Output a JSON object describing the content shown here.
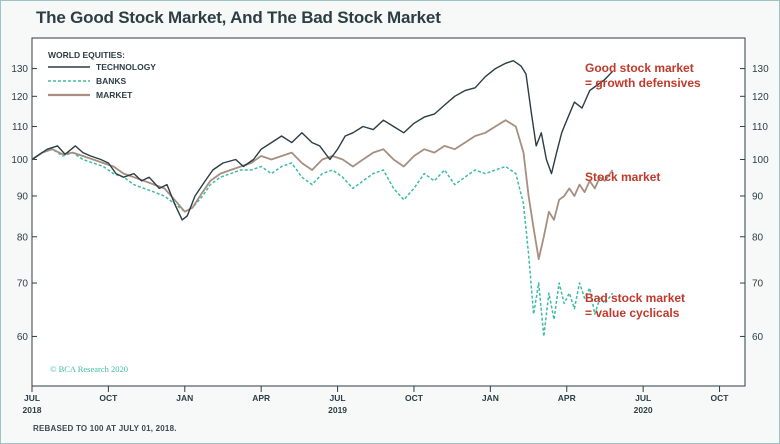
{
  "chart_data": {
    "type": "line",
    "title": "The Good Stock Market, And The Bad Stock Market",
    "legend_title": "WORLD EQUITIES:",
    "y_scale": "log",
    "ylim": [
      52,
      142
    ],
    "y_ticks": [
      60,
      70,
      80,
      90,
      100,
      110,
      120,
      130
    ],
    "x_range_months": [
      0,
      28
    ],
    "x_ticks": [
      {
        "m": 0,
        "label": "JUL",
        "year": "2018"
      },
      {
        "m": 3,
        "label": "OCT",
        "year": ""
      },
      {
        "m": 6,
        "label": "JAN",
        "year": ""
      },
      {
        "m": 9,
        "label": "APR",
        "year": ""
      },
      {
        "m": 12,
        "label": "JUL",
        "year": "2019"
      },
      {
        "m": 15,
        "label": "OCT",
        "year": ""
      },
      {
        "m": 18,
        "label": "JAN",
        "year": ""
      },
      {
        "m": 21,
        "label": "APR",
        "year": ""
      },
      {
        "m": 24,
        "label": "JUL",
        "year": "2020"
      },
      {
        "m": 27,
        "label": "OCT",
        "year": ""
      }
    ],
    "series": [
      {
        "name": "TECHNOLOGY",
        "color": "#2b3d44",
        "style": "solid",
        "x": [
          0,
          0.3,
          0.6,
          1,
          1.3,
          1.7,
          2,
          2.3,
          2.7,
          3,
          3.3,
          3.6,
          4,
          4.3,
          4.6,
          5,
          5.3,
          5.6,
          5.9,
          6.1,
          6.4,
          6.8,
          7.1,
          7.5,
          8,
          8.3,
          8.7,
          9,
          9.4,
          9.8,
          10.2,
          10.6,
          11,
          11.3,
          11.7,
          12,
          12.3,
          12.6,
          13,
          13.4,
          13.8,
          14.2,
          14.6,
          15,
          15.4,
          15.8,
          16.2,
          16.6,
          17,
          17.4,
          17.8,
          18.2,
          18.6,
          18.9,
          19.2,
          19.4,
          19.6,
          19.8,
          20,
          20.2,
          20.4,
          20.6,
          20.8,
          21,
          21.3,
          21.6,
          21.9,
          22.2,
          22.5,
          22.8
        ],
        "values": [
          100,
          101.5,
          103,
          104,
          101.5,
          104,
          102,
          101,
          100,
          99,
          96,
          95,
          96,
          94,
          95,
          92,
          93,
          88,
          84,
          85,
          90,
          94,
          97,
          99,
          100,
          98,
          100,
          103,
          105,
          107,
          105,
          108,
          105,
          104,
          100,
          103,
          107,
          108,
          110,
          109,
          112,
          110,
          108,
          111,
          113,
          114,
          117,
          120,
          122,
          123,
          127,
          130,
          132,
          133,
          131,
          128,
          115,
          104,
          108,
          100,
          96,
          102,
          108,
          112,
          118,
          116,
          122,
          124,
          126,
          129
        ]
      },
      {
        "name": "BANKS",
        "color": "#3ebca2",
        "style": "dashed",
        "x": [
          0,
          0.4,
          0.8,
          1.2,
          1.6,
          2,
          2.4,
          2.8,
          3.2,
          3.6,
          4,
          4.4,
          4.8,
          5.2,
          5.6,
          6,
          6.3,
          6.7,
          7,
          7.4,
          7.8,
          8.2,
          8.6,
          9,
          9.4,
          9.8,
          10.2,
          10.6,
          11,
          11.4,
          11.8,
          12.2,
          12.6,
          13,
          13.4,
          13.8,
          14.2,
          14.6,
          15,
          15.4,
          15.8,
          16.2,
          16.6,
          17,
          17.4,
          17.8,
          18.2,
          18.6,
          19,
          19.3,
          19.5,
          19.7,
          19.9,
          20.1,
          20.3,
          20.5,
          20.7,
          20.9,
          21.1,
          21.3,
          21.5,
          21.7,
          21.9,
          22.1,
          22.3,
          22.5,
          22.8
        ],
        "values": [
          100,
          102,
          103,
          101,
          102,
          100,
          99,
          98,
          96,
          95,
          93,
          92,
          91,
          90,
          88,
          86,
          87,
          90,
          93,
          95,
          96,
          97,
          97,
          98,
          96,
          98,
          99,
          95,
          93,
          96,
          97,
          95,
          92,
          94,
          96,
          97,
          92,
          89,
          92,
          96,
          94,
          97,
          93,
          95,
          97,
          96,
          97,
          98,
          96,
          88,
          76,
          64,
          70,
          60,
          68,
          63,
          70,
          66,
          68,
          65,
          70,
          67,
          69,
          64,
          67,
          66,
          68
        ]
      },
      {
        "name": "MARKET",
        "color": "#a68f80",
        "style": "solid",
        "x": [
          0,
          0.4,
          0.8,
          1.2,
          1.6,
          2,
          2.4,
          2.8,
          3.2,
          3.6,
          4,
          4.4,
          4.8,
          5.2,
          5.6,
          6,
          6.3,
          6.7,
          7,
          7.4,
          7.8,
          8.2,
          8.6,
          9,
          9.4,
          9.8,
          10.2,
          10.6,
          11,
          11.4,
          11.8,
          12.2,
          12.6,
          13,
          13.4,
          13.8,
          14.2,
          14.6,
          15,
          15.4,
          15.8,
          16.2,
          16.6,
          17,
          17.4,
          17.8,
          18.2,
          18.6,
          19,
          19.3,
          19.5,
          19.7,
          19.9,
          20.1,
          20.3,
          20.5,
          20.7,
          20.9,
          21.1,
          21.3,
          21.5,
          21.7,
          21.9,
          22.1,
          22.3,
          22.5,
          22.8
        ],
        "values": [
          100,
          102,
          103,
          101.5,
          102,
          101,
          100,
          99,
          98,
          96,
          95,
          94,
          93,
          92,
          89,
          86,
          87,
          91,
          94,
          96,
          97,
          98,
          99,
          101,
          100,
          101,
          102,
          99,
          97,
          100,
          101,
          100,
          98,
          100,
          102,
          103,
          100,
          98,
          101,
          103,
          102,
          104,
          103,
          105,
          107,
          108,
          110,
          112,
          110,
          102,
          90,
          82,
          75,
          80,
          86,
          84,
          89,
          90,
          92,
          90,
          93,
          91,
          94,
          92,
          95,
          94,
          97
        ]
      }
    ],
    "annotations": [
      {
        "lines": [
          "Good stock market",
          "= growth defensives"
        ],
        "color": "#c0392b"
      },
      {
        "lines": [
          "Stock market"
        ],
        "color": "#c0392b"
      },
      {
        "lines": [
          "Bad stock market",
          "= value cyclicals"
        ],
        "color": "#c0392b"
      }
    ],
    "watermark": "© BCA Research 2020",
    "footnote": "REBASED TO 100 AT JULY 01, 2018."
  }
}
